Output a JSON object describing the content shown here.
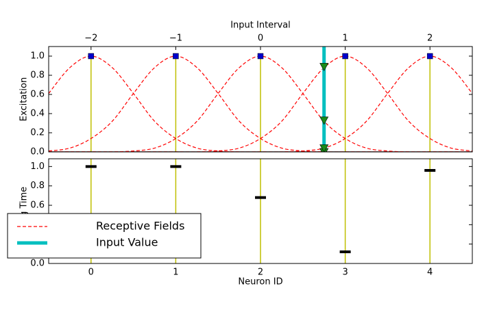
{
  "chart_data": [
    {
      "type": "line",
      "x_label": "Input Interval",
      "y_label": "Excitation",
      "xlim": [
        -2.5,
        2.5
      ],
      "xticks": [
        {
          "value": -2,
          "label": "−2"
        },
        {
          "value": -1,
          "label": "−1"
        },
        0,
        1,
        2
      ],
      "ylim": [
        0,
        1.1
      ],
      "yticks": [
        {
          "value": 0,
          "label": "0.0"
        },
        {
          "value": 0.2,
          "label": "0.2"
        },
        {
          "value": 0.4,
          "label": "0.4"
        },
        {
          "value": 0.6,
          "label": "0.6"
        },
        {
          "value": 0.8,
          "label": "0.8"
        },
        {
          "value": 1,
          "label": "1.0"
        }
      ],
      "x": [
        -2.5,
        -2.25,
        -2,
        -1.75,
        -1.5,
        -1.25,
        -1,
        -0.75,
        -0.5,
        -0.25,
        0,
        0.25,
        0.5,
        0.75,
        1,
        1.25,
        1.5,
        1.75,
        2,
        2.25,
        2.5
      ],
      "receptive_fields": {
        "name": "Receptive Fields",
        "color": "#ff0000",
        "curves": [
          [
            0.61,
            0.88,
            1,
            0.88,
            0.61,
            0.32,
            0.14,
            0.04,
            0.01,
            0,
            0,
            0,
            0,
            0,
            0,
            0,
            0,
            0,
            0,
            0,
            0
          ],
          [
            0.01,
            0.04,
            0.14,
            0.32,
            0.61,
            0.88,
            1,
            0.88,
            0.61,
            0.32,
            0.14,
            0.04,
            0.01,
            0,
            0,
            0,
            0,
            0,
            0,
            0,
            0
          ],
          [
            0,
            0,
            0,
            0,
            0.01,
            0.04,
            0.14,
            0.32,
            0.61,
            0.88,
            1,
            0.88,
            0.61,
            0.32,
            0.14,
            0.04,
            0.01,
            0,
            0,
            0,
            0
          ],
          [
            0,
            0,
            0,
            0,
            0,
            0,
            0,
            0,
            0.01,
            0.04,
            0.14,
            0.32,
            0.61,
            0.88,
            1,
            0.88,
            0.61,
            0.32,
            0.14,
            0.04,
            0.01
          ],
          [
            0,
            0,
            0,
            0,
            0,
            0,
            0,
            0,
            0,
            0,
            0,
            0,
            0.01,
            0.04,
            0.14,
            0.32,
            0.61,
            0.88,
            1,
            0.88,
            0.61
          ]
        ]
      },
      "peaks": {
        "x": [
          -2,
          -1,
          0,
          1,
          2
        ],
        "values": [
          1,
          1,
          1,
          1,
          1
        ],
        "color": "#0000cc",
        "stem_color": "#bfbf00"
      },
      "input": {
        "name": "Input Value",
        "color": "#00bfbf",
        "x": 0.75
      },
      "excitation": {
        "values": [
          0,
          0,
          0.33,
          0.89,
          0.04
        ],
        "color": "#1a8c1a"
      }
    },
    {
      "type": "scatter",
      "x_label": "Neuron ID",
      "y_label": "Firing Time",
      "xlim": [
        -0.5,
        4.5
      ],
      "xticks": [
        0,
        1,
        2,
        3,
        4
      ],
      "ylim": [
        0,
        1.08
      ],
      "yticks": [
        {
          "value": 0,
          "label": "0.0"
        },
        {
          "value": 0.2,
          "label": "0.2"
        },
        {
          "value": 0.4,
          "label": "0.4"
        },
        {
          "value": 0.6,
          "label": "0.6"
        },
        {
          "value": 0.8,
          "label": "0.8"
        },
        {
          "value": 1,
          "label": "1.0"
        }
      ],
      "x": [
        0,
        1,
        2,
        3,
        4
      ],
      "values": [
        1,
        1,
        0.68,
        0.12,
        0.96
      ],
      "color": "#000000",
      "stem_color": "#bfbf00",
      "legend": "lower left"
    }
  ]
}
